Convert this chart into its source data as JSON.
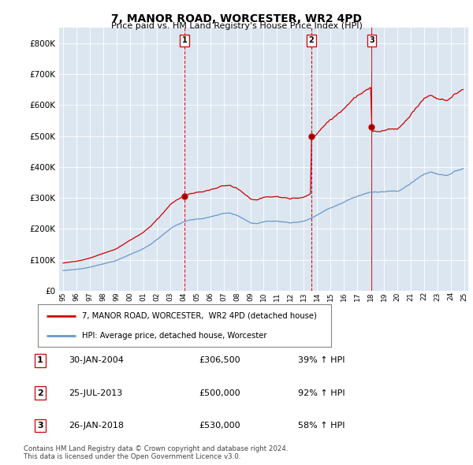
{
  "title": "7, MANOR ROAD, WORCESTER, WR2 4PD",
  "subtitle": "Price paid vs. HM Land Registry's House Price Index (HPI)",
  "background_color": "#dce6f1",
  "plot_bg_color": "#dce6f1",
  "hpi_color": "#6699cc",
  "price_color": "#cc0000",
  "vline_color": "#cc0000",
  "ylim": [
    0,
    850000
  ],
  "yticks": [
    0,
    100000,
    200000,
    300000,
    400000,
    500000,
    600000,
    700000,
    800000
  ],
  "ytick_labels": [
    "£0",
    "£100K",
    "£200K",
    "£300K",
    "£400K",
    "£500K",
    "£600K",
    "£700K",
    "£800K"
  ],
  "sales": [
    {
      "date_num": 2004.08,
      "price": 306500,
      "label": "1",
      "linestyle": "--"
    },
    {
      "date_num": 2013.57,
      "price": 500000,
      "label": "2",
      "linestyle": "--"
    },
    {
      "date_num": 2018.07,
      "price": 530000,
      "label": "3",
      "linestyle": "-"
    }
  ],
  "sale_labels": [
    {
      "num": 1,
      "date": "30-JAN-2004",
      "price": "£306,500",
      "pct": "39% ↑ HPI"
    },
    {
      "num": 2,
      "date": "25-JUL-2013",
      "price": "£500,000",
      "pct": "92% ↑ HPI"
    },
    {
      "num": 3,
      "date": "26-JAN-2018",
      "price": "£530,000",
      "pct": "58% ↑ HPI"
    }
  ],
  "legend_property_label": "7, MANOR ROAD, WORCESTER,  WR2 4PD (detached house)",
  "legend_hpi_label": "HPI: Average price, detached house, Worcester",
  "footer1": "Contains HM Land Registry data © Crown copyright and database right 2024.",
  "footer2": "This data is licensed under the Open Government Licence v3.0."
}
